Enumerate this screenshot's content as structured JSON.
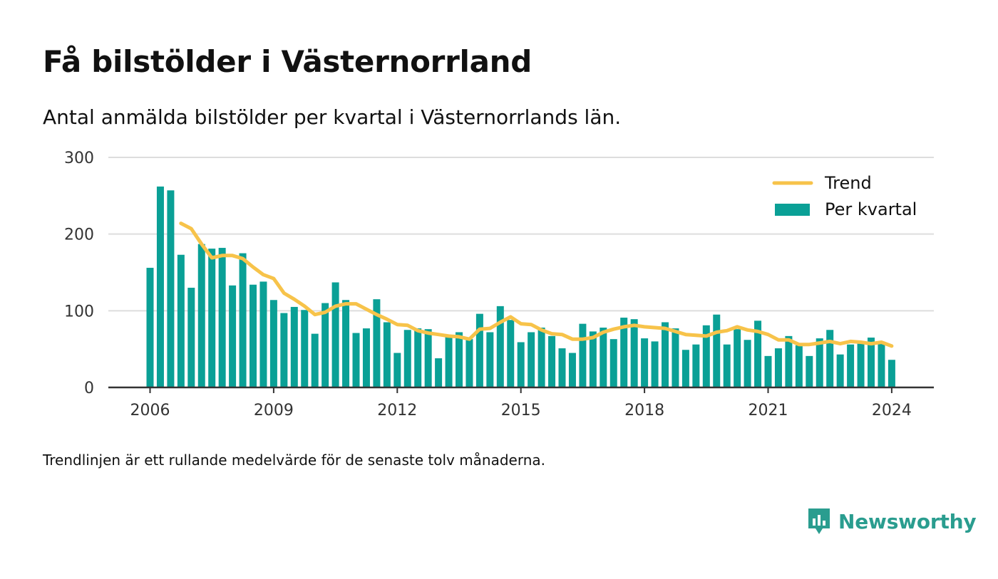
{
  "title": "Få bilstölder i Västernorrland",
  "subtitle": "Antal anmälda bilstölder per kvartal i Västernorrlands län.",
  "footnote": "Trendlinjen är ett rullande medelvärde för de senaste tolv månaderna.",
  "brand": {
    "name": "Newsworthy",
    "icon": "newsworthy-logo-icon",
    "color": "#2a9d8f"
  },
  "chart_data": {
    "type": "bar",
    "ylim": [
      0,
      300
    ],
    "yticks": [
      0,
      100,
      200,
      300
    ],
    "xticks": [
      "2006",
      "2009",
      "2012",
      "2015",
      "2018",
      "2021",
      "2024"
    ],
    "grid": true,
    "legend_position": "top-right",
    "colors": {
      "bars": "#0aa096",
      "trend": "#f7c34a",
      "grid": "#dddddd",
      "axis": "#333333"
    },
    "series": [
      {
        "name": "Per kvartal",
        "type": "bar",
        "start": "2006 Q1",
        "values": [
          156,
          262,
          257,
          173,
          130,
          187,
          181,
          182,
          133,
          175,
          134,
          138,
          114,
          97,
          105,
          101,
          70,
          110,
          137,
          114,
          71,
          77,
          115,
          85,
          45,
          75,
          77,
          76,
          38,
          66,
          72,
          63,
          96,
          72,
          106,
          88,
          59,
          72,
          78,
          67,
          51,
          45,
          83,
          73,
          78,
          63,
          91,
          89,
          64,
          60,
          85,
          77,
          49,
          56,
          81,
          95,
          56,
          76,
          62,
          87,
          41,
          51,
          67,
          55,
          41,
          64,
          75,
          43,
          56,
          57,
          65,
          59,
          36
        ]
      },
      {
        "name": "Trend",
        "type": "line",
        "start": "2006 Q4",
        "values": [
          214,
          207,
          187,
          169,
          172,
          172,
          168,
          157,
          147,
          142,
          123,
          115,
          106,
          95,
          98,
          106,
          109,
          109,
          102,
          95,
          89,
          82,
          81,
          74,
          71,
          69,
          67,
          66,
          63,
          76,
          77,
          85,
          92,
          83,
          82,
          75,
          70,
          69,
          63,
          63,
          65,
          72,
          76,
          79,
          81,
          79,
          78,
          77,
          73,
          69,
          68,
          67,
          72,
          74,
          79,
          75,
          73,
          69,
          62,
          62,
          56,
          56,
          58,
          60,
          57,
          60,
          59,
          57,
          59,
          54
        ]
      }
    ]
  }
}
